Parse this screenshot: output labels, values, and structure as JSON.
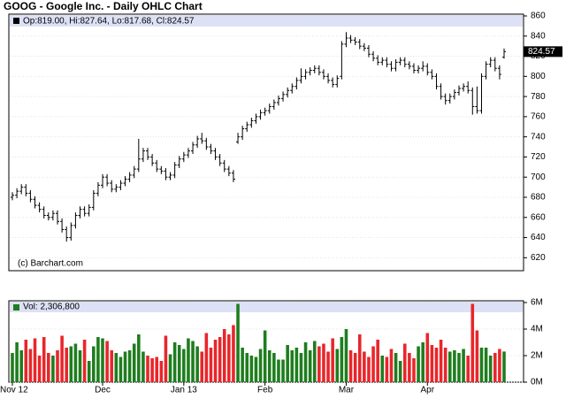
{
  "chart_data": [
    {
      "type": "ohlc",
      "title": "GOOG - Google Inc. - Daily OHLC Chart",
      "legend_text": "Op:819.00, Hi:827.64, Lo:817.68, Cl:824.57",
      "watermark": "(c) Barchart.com",
      "color": "#000000",
      "ylim": [
        608,
        860
      ],
      "yticks": [
        620,
        640,
        660,
        680,
        700,
        720,
        740,
        760,
        780,
        800,
        820,
        840,
        860
      ],
      "grid": true,
      "open": [
        680,
        682,
        686,
        690,
        684,
        678,
        672,
        668,
        662,
        660,
        664,
        656,
        648,
        640,
        652,
        662,
        668,
        664,
        670,
        684,
        692,
        700,
        694,
        688,
        690,
        694,
        698,
        702,
        708,
        718,
        726,
        720,
        714,
        708,
        706,
        700,
        702,
        712,
        718,
        722,
        726,
        732,
        738,
        736,
        730,
        726,
        720,
        714,
        708,
        704,
        735,
        740,
        748,
        752,
        756,
        760,
        764,
        766,
        770,
        774,
        778,
        782,
        786,
        790,
        796,
        800,
        804,
        806,
        808,
        804,
        800,
        796,
        792,
        800,
        832,
        838,
        836,
        834,
        830,
        828,
        822,
        818,
        814,
        816,
        812,
        808,
        814,
        816,
        812,
        810,
        806,
        808,
        810,
        804,
        800,
        790,
        780,
        776,
        780,
        784,
        788,
        790,
        786,
        770,
        766,
        800,
        812,
        816,
        808,
        819
      ],
      "high": [
        685,
        689,
        693,
        693,
        687,
        681,
        675,
        671,
        665,
        667,
        667,
        659,
        651,
        655,
        665,
        671,
        671,
        673,
        687,
        695,
        703,
        703,
        697,
        693,
        697,
        701,
        705,
        711,
        738,
        729,
        729,
        723,
        717,
        711,
        709,
        705,
        715,
        721,
        725,
        729,
        735,
        741,
        744,
        739,
        733,
        729,
        723,
        717,
        711,
        707,
        744,
        751,
        755,
        759,
        763,
        767,
        769,
        773,
        777,
        781,
        785,
        789,
        793,
        799,
        808,
        807,
        809,
        811,
        811,
        807,
        803,
        799,
        801,
        835,
        844,
        841,
        839,
        837,
        833,
        831,
        825,
        821,
        819,
        819,
        815,
        817,
        819,
        819,
        815,
        813,
        811,
        815,
        813,
        807,
        803,
        793,
        783,
        783,
        787,
        791,
        793,
        795,
        789,
        790,
        803,
        815,
        819,
        819,
        811,
        827.64
      ],
      "low": [
        677,
        679,
        683,
        681,
        675,
        669,
        665,
        659,
        657,
        657,
        653,
        645,
        636,
        637,
        649,
        659,
        661,
        661,
        667,
        681,
        689,
        691,
        685,
        685,
        687,
        691,
        695,
        699,
        705,
        715,
        717,
        711,
        705,
        703,
        697,
        697,
        699,
        709,
        715,
        719,
        723,
        729,
        733,
        727,
        723,
        717,
        711,
        705,
        701,
        695,
        733,
        737,
        745,
        749,
        753,
        757,
        761,
        763,
        767,
        771,
        775,
        779,
        783,
        787,
        793,
        797,
        801,
        803,
        801,
        797,
        793,
        789,
        789,
        797,
        829,
        833,
        831,
        827,
        825,
        819,
        815,
        811,
        811,
        809,
        805,
        805,
        811,
        809,
        807,
        803,
        803,
        805,
        801,
        797,
        787,
        777,
        772,
        773,
        777,
        781,
        785,
        783,
        762,
        763,
        763,
        797,
        809,
        805,
        797,
        817.68
      ],
      "close": [
        682,
        686,
        690,
        684,
        678,
        672,
        668,
        662,
        660,
        664,
        656,
        648,
        640,
        652,
        662,
        668,
        664,
        670,
        684,
        692,
        700,
        694,
        688,
        690,
        694,
        698,
        702,
        708,
        718,
        726,
        720,
        714,
        708,
        706,
        700,
        702,
        712,
        718,
        722,
        726,
        732,
        738,
        736,
        730,
        726,
        720,
        714,
        708,
        704,
        698,
        740,
        748,
        752,
        756,
        760,
        764,
        766,
        770,
        774,
        778,
        782,
        786,
        790,
        796,
        800,
        804,
        806,
        808,
        804,
        800,
        796,
        792,
        798,
        832,
        838,
        836,
        834,
        830,
        828,
        822,
        818,
        814,
        816,
        812,
        808,
        814,
        816,
        812,
        810,
        806,
        808,
        810,
        804,
        800,
        790,
        780,
        776,
        780,
        784,
        788,
        790,
        786,
        770,
        766,
        800,
        812,
        816,
        808,
        802,
        824.57
      ]
    },
    {
      "type": "bar",
      "legend_text": "Vol: 2,306,800",
      "up_color": "#1e7d1e",
      "down_color": "#e8262b",
      "ylim": [
        0,
        6000000
      ],
      "yticks": [
        {
          "value": 0,
          "label": "0M"
        },
        {
          "value": 2000000,
          "label": "2M"
        },
        {
          "value": 4000000,
          "label": "4M"
        },
        {
          "value": 6000000,
          "label": "6M"
        }
      ],
      "grid": true,
      "categories": [
        "Nov 12",
        null,
        null,
        null,
        null,
        null,
        null,
        null,
        null,
        null,
        null,
        null,
        null,
        null,
        null,
        null,
        null,
        null,
        null,
        null,
        "Dec",
        null,
        null,
        null,
        null,
        null,
        null,
        null,
        null,
        null,
        null,
        null,
        null,
        null,
        null,
        null,
        null,
        null,
        "Jan 13",
        null,
        null,
        null,
        null,
        null,
        null,
        null,
        null,
        null,
        null,
        null,
        null,
        null,
        null,
        null,
        null,
        null,
        "Feb",
        null,
        null,
        null,
        null,
        null,
        null,
        null,
        null,
        null,
        null,
        null,
        null,
        null,
        null,
        null,
        null,
        null,
        "Mar",
        null,
        null,
        null,
        null,
        null,
        null,
        null,
        null,
        null,
        null,
        null,
        null,
        null,
        null,
        null,
        null,
        null,
        "Apr",
        null,
        null,
        null,
        null,
        null,
        null,
        null,
        null,
        null,
        null,
        null,
        null,
        null,
        null,
        null,
        null,
        null
      ],
      "values": [
        2200000,
        3000000,
        2400000,
        3200000,
        2500000,
        3300000,
        2000000,
        3400000,
        2200000,
        2000000,
        2400000,
        3500000,
        2600000,
        2700000,
        2900000,
        2400000,
        3200000,
        1600000,
        2700000,
        3400000,
        3300000,
        3100000,
        2400000,
        2200000,
        1900000,
        2300000,
        2400000,
        2900000,
        3600000,
        2300000,
        2000000,
        1800000,
        1900000,
        1600000,
        3500000,
        2100000,
        3000000,
        2800000,
        2500000,
        3300000,
        3100000,
        2700000,
        2300000,
        3700000,
        2600000,
        3200000,
        3400000,
        4000000,
        3600000,
        4300000,
        5900000,
        2600000,
        2200000,
        2000000,
        1900000,
        2500000,
        3900000,
        2400000,
        2200000,
        1700000,
        1700000,
        2800000,
        2400000,
        2600000,
        2200000,
        3000000,
        2400000,
        3100000,
        2700000,
        2900000,
        2300000,
        3300000,
        2500000,
        3400000,
        4000000,
        2400000,
        2200000,
        3600000,
        2300000,
        1900000,
        2700000,
        3200000,
        2000000,
        1900000,
        2500000,
        2200000,
        1600000,
        2900000,
        2200000,
        1800000,
        2700000,
        3000000,
        3700000,
        2800000,
        2600000,
        3200000,
        2600000,
        2300000,
        2400000,
        2200000,
        2500000,
        2000000,
        5900000,
        3900000,
        2600000,
        2600000,
        2000000,
        2200000,
        2500000,
        2306800
      ]
    }
  ]
}
